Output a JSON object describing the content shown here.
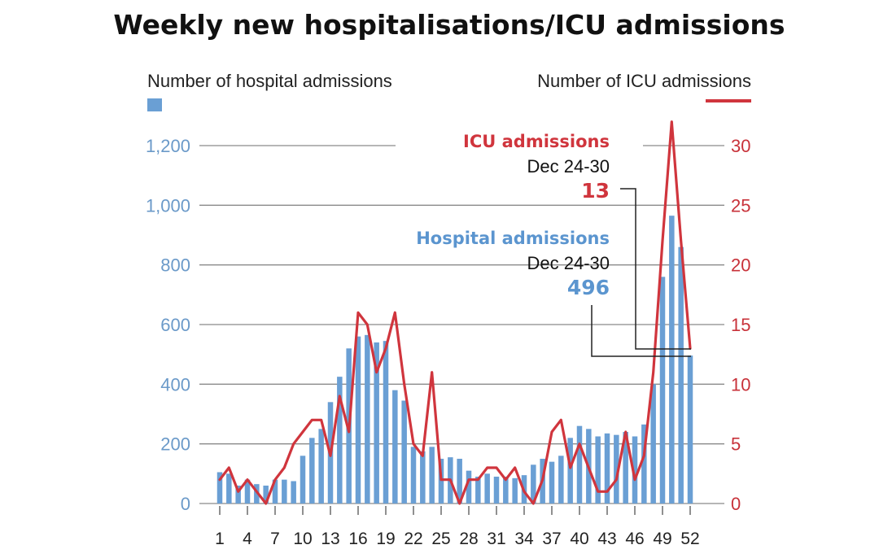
{
  "chart_data": {
    "type": "bar",
    "title": "Weekly new hospitalisations/ICU admissions",
    "left_axis": {
      "label": "Number of hospital admissions",
      "ylim": [
        0,
        1200
      ],
      "ticks": [
        "0",
        "200",
        "400",
        "600",
        "800",
        "1,000",
        "1,200"
      ]
    },
    "right_axis": {
      "label": "Number of ICU admissions",
      "ylim": [
        0,
        30
      ],
      "ticks": [
        "0",
        "5",
        "10",
        "15",
        "20",
        "25",
        "30"
      ]
    },
    "x_tick_labels": [
      "1",
      "4",
      "7",
      "10",
      "13",
      "16",
      "19",
      "22",
      "25",
      "28",
      "31",
      "34",
      "37",
      "40",
      "43",
      "46",
      "49",
      "52"
    ],
    "x": [
      1,
      2,
      3,
      4,
      5,
      6,
      7,
      8,
      9,
      10,
      11,
      12,
      13,
      14,
      15,
      16,
      17,
      18,
      19,
      20,
      21,
      22,
      23,
      24,
      25,
      26,
      27,
      28,
      29,
      30,
      31,
      32,
      33,
      34,
      35,
      36,
      37,
      38,
      39,
      40,
      41,
      42,
      43,
      44,
      45,
      46,
      47,
      48,
      49,
      50,
      51,
      52
    ],
    "grid": true,
    "series": [
      {
        "type": "bar",
        "axis": "left",
        "values": [
          105,
          100,
          60,
          80,
          65,
          60,
          80,
          80,
          75,
          160,
          220,
          250,
          340,
          425,
          520,
          560,
          565,
          540,
          545,
          380,
          345,
          190,
          175,
          190,
          150,
          155,
          150,
          110,
          90,
          100,
          90,
          90,
          85,
          95,
          130,
          150,
          140,
          160,
          220,
          260,
          250,
          225,
          235,
          230,
          240,
          225,
          265,
          400,
          760,
          965,
          860,
          496
        ],
        "color": "#6a9fd4"
      },
      {
        "type": "line",
        "axis": "right",
        "values": [
          2,
          3,
          1,
          2,
          1,
          0,
          2,
          3,
          5,
          6,
          7,
          7,
          4,
          9,
          6,
          16,
          15,
          11,
          13,
          16,
          10,
          5,
          4,
          11,
          2,
          2,
          0,
          2,
          2,
          3,
          3,
          2,
          3,
          1,
          0,
          2,
          6,
          7,
          3,
          5,
          3,
          1,
          1,
          2,
          6,
          2,
          4,
          11,
          22,
          32,
          22,
          13
        ],
        "color": "#d0353d"
      }
    ],
    "annotations": {
      "icu_heading": "ICU admissions",
      "icu_date": "Dec 24-30",
      "icu_value": "13",
      "hosp_heading": "Hospital admissions",
      "hosp_date": "Dec 24-30",
      "hosp_value": "496"
    },
    "colors": {
      "bars": "#6a9fd4",
      "line": "#d0353d",
      "grid": "#8a8a8a"
    }
  }
}
